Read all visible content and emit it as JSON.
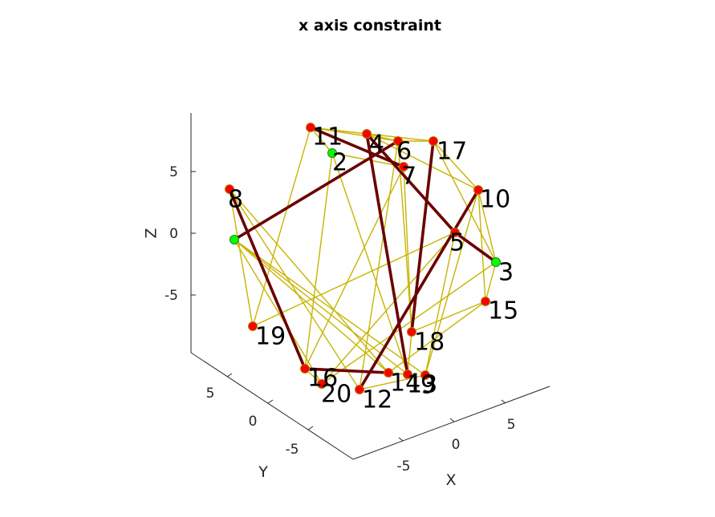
{
  "chart_data": {
    "type": "graph3d",
    "title": "x axis constraint",
    "xlabel": "X",
    "ylabel": "Y",
    "zlabel": "Z",
    "x_ticks": [
      "-5",
      "0",
      "5"
    ],
    "y_ticks": [
      "5",
      "0",
      "-5"
    ],
    "z_ticks": [
      "5",
      "0",
      "-5"
    ],
    "colors": {
      "node_free": "#ff0000",
      "node_constrained": "#00ff00",
      "edge_thin": "#c8b400",
      "edge_thick": "#6b0000",
      "axis": "#262626"
    },
    "nodes": [
      {
        "id": 1,
        "label": "",
        "constrained": true
      },
      {
        "id": 2,
        "label": "2",
        "constrained": true
      },
      {
        "id": 3,
        "label": "3",
        "constrained": true
      },
      {
        "id": 4,
        "label": "4",
        "constrained": false
      },
      {
        "id": 5,
        "label": "5",
        "constrained": false
      },
      {
        "id": 6,
        "label": "6",
        "constrained": false
      },
      {
        "id": 7,
        "label": "7",
        "constrained": false
      },
      {
        "id": 8,
        "label": "8",
        "constrained": false
      },
      {
        "id": 9,
        "label": "9",
        "constrained": false
      },
      {
        "id": 10,
        "label": "10",
        "constrained": false
      },
      {
        "id": 11,
        "label": "11",
        "constrained": false
      },
      {
        "id": 12,
        "label": "12",
        "constrained": false
      },
      {
        "id": 13,
        "label": "13",
        "constrained": false
      },
      {
        "id": 14,
        "label": "14",
        "constrained": false
      },
      {
        "id": 15,
        "label": "15",
        "constrained": false
      },
      {
        "id": 16,
        "label": "16",
        "constrained": false
      },
      {
        "id": 17,
        "label": "17",
        "constrained": false
      },
      {
        "id": 18,
        "label": "18",
        "constrained": false
      },
      {
        "id": 19,
        "label": "19",
        "constrained": false
      },
      {
        "id": 20,
        "label": "20",
        "constrained": false
      }
    ],
    "edges_thin": [
      [
        11,
        4
      ],
      [
        11,
        6
      ],
      [
        11,
        19
      ],
      [
        11,
        2
      ],
      [
        4,
        6
      ],
      [
        4,
        17
      ],
      [
        4,
        10
      ],
      [
        6,
        17
      ],
      [
        6,
        12
      ],
      [
        6,
        18
      ],
      [
        2,
        7
      ],
      [
        2,
        16
      ],
      [
        2,
        13
      ],
      [
        17,
        10
      ],
      [
        17,
        3
      ],
      [
        10,
        3
      ],
      [
        10,
        15
      ],
      [
        10,
        9
      ],
      [
        3,
        15
      ],
      [
        3,
        20
      ],
      [
        15,
        18
      ],
      [
        15,
        14
      ],
      [
        18,
        13
      ],
      [
        19,
        5
      ],
      [
        19,
        8
      ],
      [
        8,
        14
      ],
      [
        8,
        12
      ],
      [
        1,
        20
      ],
      [
        1,
        13
      ],
      [
        1,
        9
      ],
      [
        1,
        14
      ],
      [
        20,
        5
      ],
      [
        16,
        13
      ],
      [
        12,
        9
      ],
      [
        14,
        13
      ],
      [
        16,
        20
      ],
      [
        5,
        9
      ],
      [
        7,
        18
      ],
      [
        7,
        16
      ]
    ],
    "edges_thick": [
      [
        1,
        6
      ],
      [
        11,
        7
      ],
      [
        4,
        5
      ],
      [
        5,
        3
      ],
      [
        4,
        13
      ],
      [
        8,
        16
      ],
      [
        16,
        14
      ],
      [
        17,
        18
      ],
      [
        12,
        10
      ]
    ]
  }
}
